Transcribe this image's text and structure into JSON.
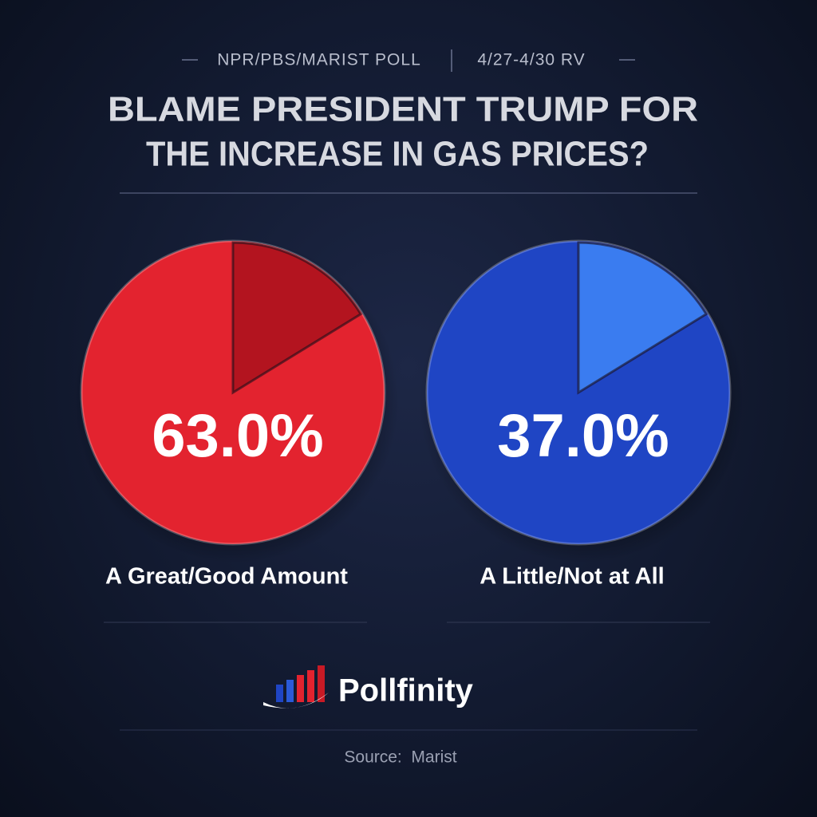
{
  "header": {
    "poll": "NPR/PBS/MARIST POLL",
    "dates": "4/27-4/30 RV"
  },
  "chart_data": {
    "type": "circles",
    "title": [
      "BLAME PRESIDENT TRUMP FOR",
      "THE INCREASE IN GAS PRICES?"
    ],
    "categories": [
      "A Great/Good Amount",
      "A Little/Not at All"
    ],
    "values": [
      63.0,
      37.0
    ],
    "value_labels": [
      "63.0%",
      "37.0%"
    ],
    "colors": [
      "#e3232f",
      "#1f45c4"
    ]
  },
  "footer": {
    "brand": "Pollfinity",
    "source": "Source:  Marist"
  }
}
